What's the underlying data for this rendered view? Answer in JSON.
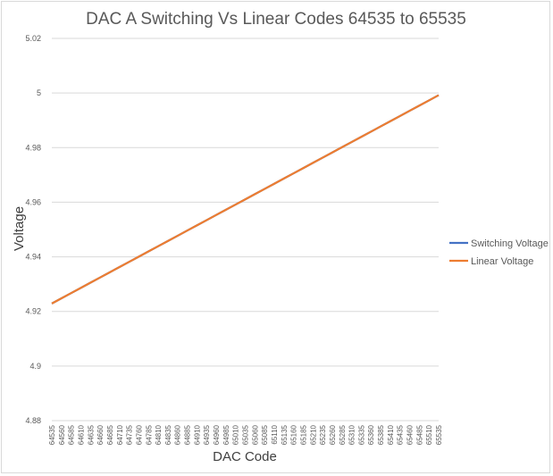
{
  "chart_data": {
    "type": "line",
    "title": "DAC A Switching Vs Linear Codes 64535 to 65535",
    "xlabel": "DAC Code",
    "ylabel": "Voltage",
    "ylim": [
      4.88,
      5.02
    ],
    "yticks": [
      "4.88",
      "4.9",
      "4.92",
      "4.94",
      "4.96",
      "4.98",
      "5",
      "5.02"
    ],
    "grid": true,
    "legend_position": "right",
    "categories": [
      "64535",
      "64560",
      "64585",
      "64610",
      "64635",
      "64660",
      "64685",
      "64710",
      "64735",
      "64760",
      "64785",
      "64810",
      "64835",
      "64860",
      "64885",
      "64910",
      "64935",
      "64960",
      "64985",
      "65010",
      "65035",
      "65060",
      "65085",
      "65110",
      "65135",
      "65160",
      "65185",
      "65210",
      "65235",
      "65260",
      "65285",
      "65310",
      "65335",
      "65360",
      "65385",
      "65410",
      "65435",
      "65460",
      "65485",
      "65510",
      "65535"
    ],
    "series": [
      {
        "name": "Switching Voltage",
        "color": "#4472C4",
        "start": 4.9229,
        "end": 4.9992
      },
      {
        "name": "Linear Voltage",
        "color": "#ED7D31",
        "start": 4.9229,
        "end": 4.9992
      }
    ]
  }
}
